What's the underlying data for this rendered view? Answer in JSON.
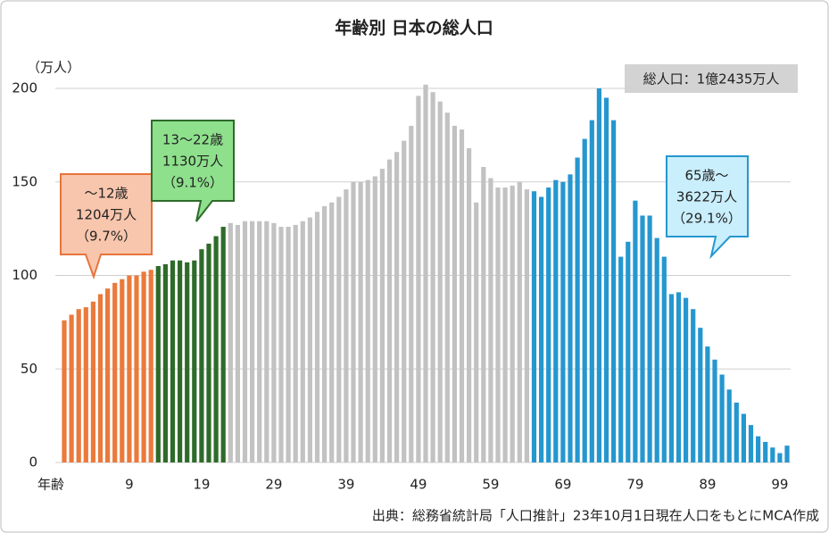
{
  "chart_data": {
    "type": "bar",
    "title": "年齢別 日本の総人口",
    "y_axis_label": "（万人）",
    "x_axis_label": "年齢",
    "source": "出典：総務省統計局「人口推計」23年10月1日現在人口をもとにMCA作成",
    "total_label": "総人口：1億2435万人",
    "categories": [
      null,
      null,
      null,
      null,
      null,
      null,
      null,
      null,
      null,
      "9",
      null,
      null,
      null,
      null,
      null,
      null,
      null,
      null,
      null,
      "19",
      null,
      null,
      null,
      null,
      null,
      null,
      null,
      null,
      null,
      "29",
      null,
      null,
      null,
      null,
      null,
      null,
      null,
      null,
      null,
      "39",
      null,
      null,
      null,
      null,
      null,
      null,
      null,
      null,
      null,
      "49",
      null,
      null,
      null,
      null,
      null,
      null,
      null,
      null,
      null,
      "59",
      null,
      null,
      null,
      null,
      null,
      null,
      null,
      null,
      null,
      "69",
      null,
      null,
      null,
      null,
      null,
      null,
      null,
      null,
      null,
      "79",
      null,
      null,
      null,
      null,
      null,
      null,
      null,
      null,
      null,
      "89",
      null,
      null,
      null,
      null,
      null,
      null,
      null,
      null,
      null,
      "99",
      null
    ],
    "values": [
      76,
      79,
      82,
      83,
      86,
      90,
      93,
      96,
      98,
      100,
      100,
      102,
      103,
      105,
      106,
      108,
      108,
      107,
      108,
      114,
      117,
      121,
      126,
      128,
      127,
      129,
      129,
      129,
      129,
      128,
      126,
      126,
      127,
      129,
      131,
      134,
      137,
      139,
      142,
      146,
      150,
      150,
      151,
      153,
      157,
      162,
      166,
      172,
      180,
      196,
      202,
      198,
      193,
      187,
      180,
      178,
      168,
      139,
      158,
      152,
      147,
      147,
      148,
      150,
      146,
      145,
      142,
      147,
      151,
      150,
      154,
      163,
      173,
      183,
      200,
      195,
      183,
      110,
      118,
      140,
      132,
      132,
      120,
      110,
      90,
      91,
      88,
      82,
      72,
      62,
      55,
      47,
      39,
      32,
      26,
      20,
      14,
      11,
      8,
      5,
      9
    ],
    "colors": [
      "#ea7a3c",
      "#ea7a3c",
      "#ea7a3c",
      "#ea7a3c",
      "#ea7a3c",
      "#ea7a3c",
      "#ea7a3c",
      "#ea7a3c",
      "#ea7a3c",
      "#ea7a3c",
      "#ea7a3c",
      "#ea7a3c",
      "#ea7a3c",
      "#2e6b2a",
      "#2e6b2a",
      "#2e6b2a",
      "#2e6b2a",
      "#2e6b2a",
      "#2e6b2a",
      "#2e6b2a",
      "#2e6b2a",
      "#2e6b2a",
      "#2e6b2a",
      "#c2c2c2",
      "#c2c2c2",
      "#c2c2c2",
      "#c2c2c2",
      "#c2c2c2",
      "#c2c2c2",
      "#c2c2c2",
      "#c2c2c2",
      "#c2c2c2",
      "#c2c2c2",
      "#c2c2c2",
      "#c2c2c2",
      "#c2c2c2",
      "#c2c2c2",
      "#c2c2c2",
      "#c2c2c2",
      "#c2c2c2",
      "#c2c2c2",
      "#c2c2c2",
      "#c2c2c2",
      "#c2c2c2",
      "#c2c2c2",
      "#c2c2c2",
      "#c2c2c2",
      "#c2c2c2",
      "#c2c2c2",
      "#c2c2c2",
      "#c2c2c2",
      "#c2c2c2",
      "#c2c2c2",
      "#c2c2c2",
      "#c2c2c2",
      "#c2c2c2",
      "#c2c2c2",
      "#c2c2c2",
      "#c2c2c2",
      "#c2c2c2",
      "#c2c2c2",
      "#c2c2c2",
      "#c2c2c2",
      "#c2c2c2",
      "#c2c2c2",
      "#2597cf",
      "#2597cf",
      "#2597cf",
      "#2597cf",
      "#2597cf",
      "#2597cf",
      "#2597cf",
      "#2597cf",
      "#2597cf",
      "#2597cf",
      "#2597cf",
      "#2597cf",
      "#2597cf",
      "#2597cf",
      "#2597cf",
      "#2597cf",
      "#2597cf",
      "#2597cf",
      "#2597cf",
      "#2597cf",
      "#2597cf",
      "#2597cf",
      "#2597cf",
      "#2597cf",
      "#2597cf",
      "#2597cf",
      "#2597cf",
      "#2597cf",
      "#2597cf",
      "#2597cf",
      "#2597cf",
      "#2597cf",
      "#2597cf",
      "#2597cf",
      "#2597cf",
      "#2597cf"
    ],
    "ylim": [
      0,
      200
    ],
    "yticks": [
      0,
      50,
      100,
      150,
      200
    ],
    "grid": true,
    "annotations": [
      {
        "lines": [
          "～12歳",
          "1204万人",
          "（9.7%）"
        ]
      },
      {
        "lines": [
          "13～22歳",
          "1130万人",
          "（9.1%）"
        ]
      },
      {
        "lines": [
          "65歳～",
          "3622万人",
          "（29.1%）"
        ]
      }
    ]
  }
}
